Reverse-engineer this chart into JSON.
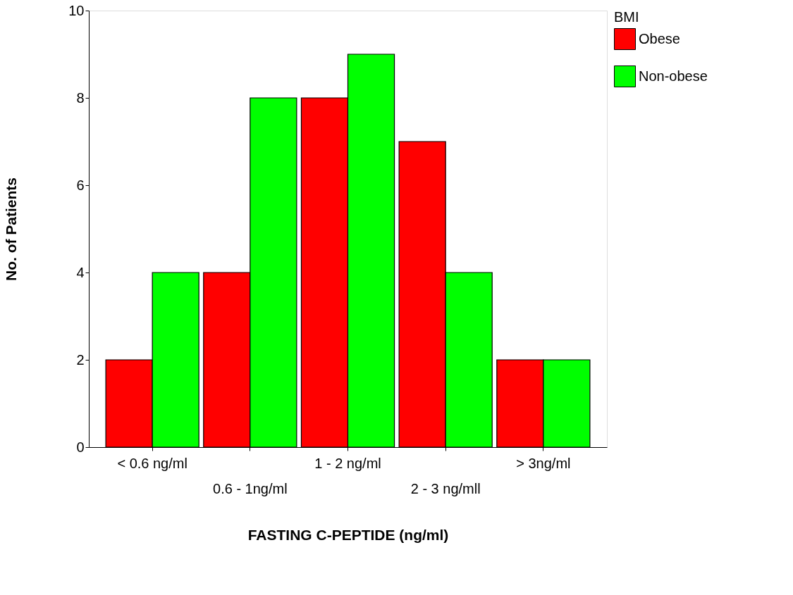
{
  "chart_data": {
    "type": "bar",
    "xlabel": "FASTING C-PEPTIDE (ng/ml)",
    "ylabel": "No. of  Patients",
    "legend_title": "BMI",
    "categories": [
      "<  0.6 ng/ml",
      "0.6 - 1ng/ml",
      "1 - 2 ng/ml",
      "2 - 3 ng/mll",
      "> 3ng/ml"
    ],
    "series": [
      {
        "name": "Obese",
        "color": "#ff0000",
        "values": [
          2,
          4,
          8,
          7,
          2
        ]
      },
      {
        "name": "Non-obese",
        "color": "#00ff00",
        "values": [
          4,
          8,
          9,
          4,
          2
        ]
      }
    ],
    "ylim": [
      0,
      10
    ],
    "yticks": [
      0,
      2,
      4,
      6,
      8,
      10
    ],
    "grid": false,
    "legend": "right"
  }
}
